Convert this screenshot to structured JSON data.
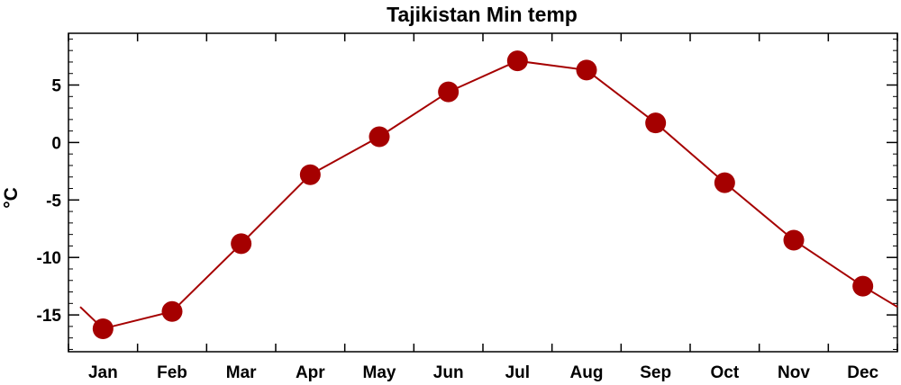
{
  "chart_data": {
    "type": "line",
    "title": "Tajikistan Min temp",
    "xlabel": "",
    "ylabel": "°C",
    "categories": [
      "Jan",
      "Feb",
      "Mar",
      "Apr",
      "May",
      "Jun",
      "Jul",
      "Aug",
      "Sep",
      "Oct",
      "Nov",
      "Dec"
    ],
    "values": [
      -16.2,
      -14.7,
      -8.8,
      -2.8,
      0.5,
      4.4,
      7.1,
      6.3,
      1.7,
      -3.5,
      -8.5,
      -12.5
    ],
    "wrap_start": -14.3,
    "wrap_end": -14.3,
    "ylim": [
      -18.2,
      9.5
    ],
    "yticks": [
      -15,
      -10,
      -5,
      0,
      5
    ],
    "ytick_labels": [
      "-15",
      "-10",
      "-5",
      "0",
      "5"
    ],
    "series_color": "#a50000",
    "grid": false,
    "legend": "none"
  }
}
